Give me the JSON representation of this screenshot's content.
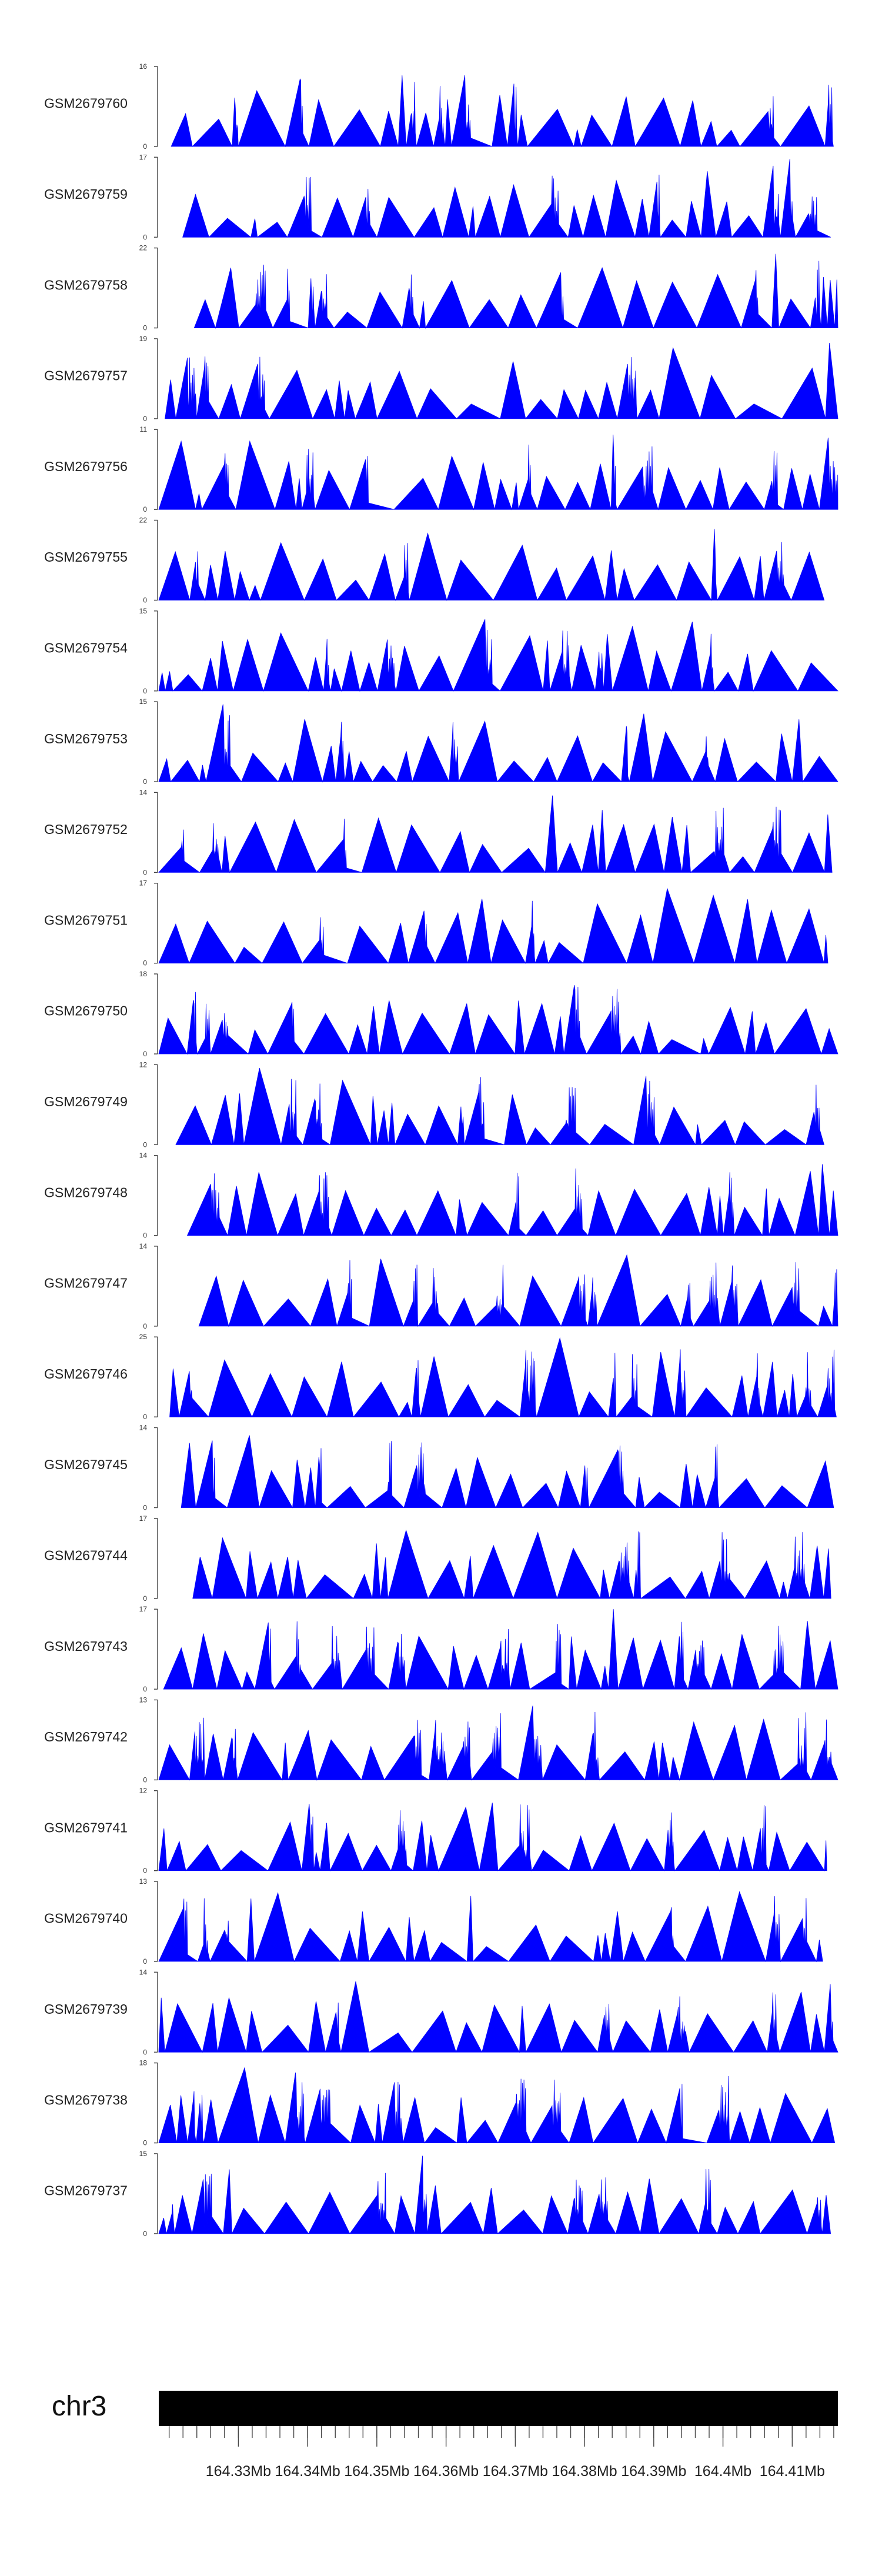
{
  "chart_data": {
    "type": "area",
    "title": "",
    "fill_color": "#0000ff",
    "chromosome": "chr3",
    "genome_axis": {
      "min_mb": 164.3185,
      "max_mb": 164.4166,
      "minor_tick_step_mb": 0.002,
      "tick_labels": [
        "164.33Mb",
        "164.34Mb",
        "164.35Mb",
        "164.36Mb",
        "164.37Mb",
        "164.38Mb",
        "164.39Mb",
        "164.4Mb",
        "164.41Mb"
      ],
      "tick_values_mb": [
        164.33,
        164.34,
        164.35,
        164.36,
        164.37,
        164.38,
        164.39,
        164.4,
        164.41
      ]
    },
    "tracks": [
      {
        "name": "GSM2679760",
        "ymin": 0,
        "ymax": 16,
        "ymin_label": "0",
        "ymax_label": "16"
      },
      {
        "name": "GSM2679759",
        "ymin": 0,
        "ymax": 17,
        "ymin_label": "0",
        "ymax_label": "17"
      },
      {
        "name": "GSM2679758",
        "ymin": 0,
        "ymax": 22,
        "ymin_label": "0",
        "ymax_label": "22"
      },
      {
        "name": "GSM2679757",
        "ymin": 0,
        "ymax": 19,
        "ymin_label": "0",
        "ymax_label": "19"
      },
      {
        "name": "GSM2679756",
        "ymin": 0,
        "ymax": 11,
        "ymin_label": "0",
        "ymax_label": "11"
      },
      {
        "name": "GSM2679755",
        "ymin": 0,
        "ymax": 22,
        "ymin_label": "0",
        "ymax_label": "22"
      },
      {
        "name": "GSM2679754",
        "ymin": 0,
        "ymax": 15,
        "ymin_label": "0",
        "ymax_label": "15"
      },
      {
        "name": "GSM2679753",
        "ymin": 0,
        "ymax": 15,
        "ymin_label": "0",
        "ymax_label": "15"
      },
      {
        "name": "GSM2679752",
        "ymin": 0,
        "ymax": 14,
        "ymin_label": "0",
        "ymax_label": "14"
      },
      {
        "name": "GSM2679751",
        "ymin": 0,
        "ymax": 17,
        "ymin_label": "0",
        "ymax_label": "17"
      },
      {
        "name": "GSM2679750",
        "ymin": 0,
        "ymax": 18,
        "ymin_label": "0",
        "ymax_label": "18"
      },
      {
        "name": "GSM2679749",
        "ymin": 0,
        "ymax": 12,
        "ymin_label": "0",
        "ymax_label": "12"
      },
      {
        "name": "GSM2679748",
        "ymin": 0,
        "ymax": 14,
        "ymin_label": "0",
        "ymax_label": "14"
      },
      {
        "name": "GSM2679747",
        "ymin": 0,
        "ymax": 14,
        "ymin_label": "0",
        "ymax_label": "14"
      },
      {
        "name": "GSM2679746",
        "ymin": 0,
        "ymax": 25,
        "ymin_label": "0",
        "ymax_label": "25"
      },
      {
        "name": "GSM2679745",
        "ymin": 0,
        "ymax": 14,
        "ymin_label": "0",
        "ymax_label": "14"
      },
      {
        "name": "GSM2679744",
        "ymin": 0,
        "ymax": 17,
        "ymin_label": "0",
        "ymax_label": "17"
      },
      {
        "name": "GSM2679743",
        "ymin": 0,
        "ymax": 17,
        "ymin_label": "0",
        "ymax_label": "17"
      },
      {
        "name": "GSM2679742",
        "ymin": 0,
        "ymax": 13,
        "ymin_label": "0",
        "ymax_label": "13"
      },
      {
        "name": "GSM2679741",
        "ymin": 0,
        "ymax": 12,
        "ymin_label": "0",
        "ymax_label": "12"
      },
      {
        "name": "GSM2679740",
        "ymin": 0,
        "ymax": 13,
        "ymin_label": "0",
        "ymax_label": "13"
      },
      {
        "name": "GSM2679739",
        "ymin": 0,
        "ymax": 14,
        "ymin_label": "0",
        "ymax_label": "14"
      },
      {
        "name": "GSM2679738",
        "ymin": 0,
        "ymax": 18,
        "ymin_label": "0",
        "ymax_label": "18"
      },
      {
        "name": "GSM2679737",
        "ymin": 0,
        "ymax": 15,
        "ymin_label": "0",
        "ymax_label": "15"
      }
    ]
  }
}
